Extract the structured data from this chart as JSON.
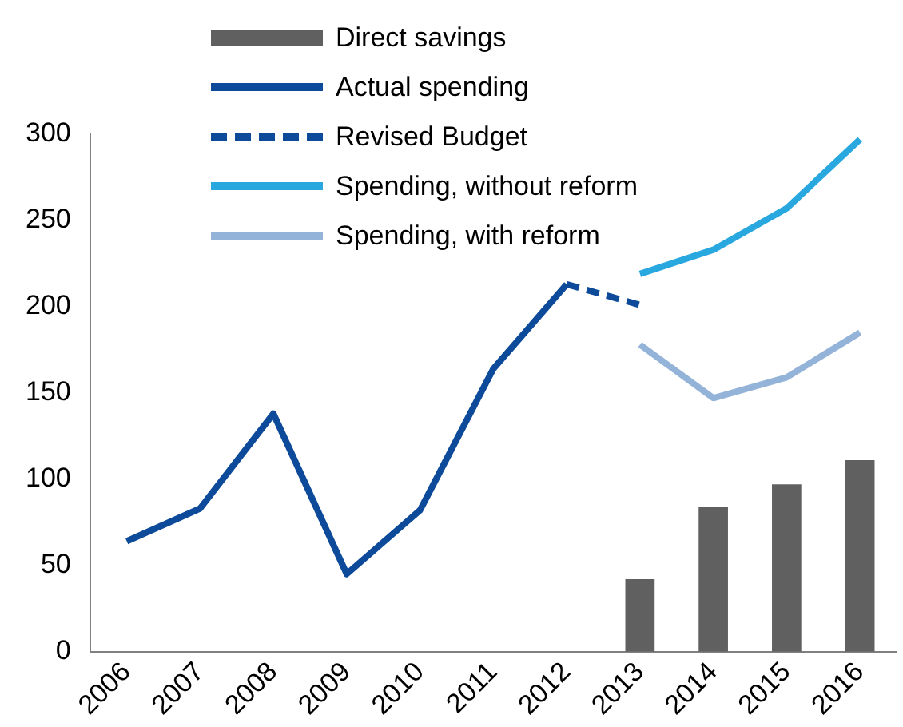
{
  "chart_data": {
    "type": "bar",
    "categories": [
      "2006",
      "2007",
      "2008",
      "2009",
      "2010",
      "2011",
      "2012",
      "2013",
      "2014",
      "2015",
      "2016"
    ],
    "series": [
      {
        "name": "Direct savings",
        "color": "#606060",
        "values": [
          null,
          null,
          null,
          null,
          null,
          null,
          null,
          42,
          84,
          97,
          111
        ]
      },
      {
        "name": "Actual spending",
        "type": "line",
        "color": "#0d4a9a",
        "values": [
          64,
          83,
          138,
          45,
          82,
          164,
          213,
          null,
          null,
          null,
          null
        ]
      },
      {
        "name": "Revised Budget",
        "type": "line",
        "line_style": "dashed",
        "color": "#0d4a9a",
        "values": [
          null,
          null,
          null,
          null,
          null,
          null,
          213,
          201,
          null,
          null,
          null
        ]
      },
      {
        "name": "Spending, without reform",
        "type": "line",
        "color": "#29a8e0",
        "values": [
          null,
          null,
          null,
          null,
          null,
          null,
          null,
          219,
          233,
          257,
          297
        ]
      },
      {
        "name": "Spending, with reform",
        "type": "line",
        "color": "#94b3d8",
        "values": [
          null,
          null,
          null,
          null,
          null,
          null,
          null,
          178,
          147,
          159,
          185
        ]
      }
    ],
    "ylim": [
      0,
      300
    ],
    "yticks": [
      0,
      50,
      100,
      150,
      200,
      250,
      300
    ],
    "grid": false,
    "legend": "top",
    "marker": "none",
    "line_style": "solid"
  }
}
